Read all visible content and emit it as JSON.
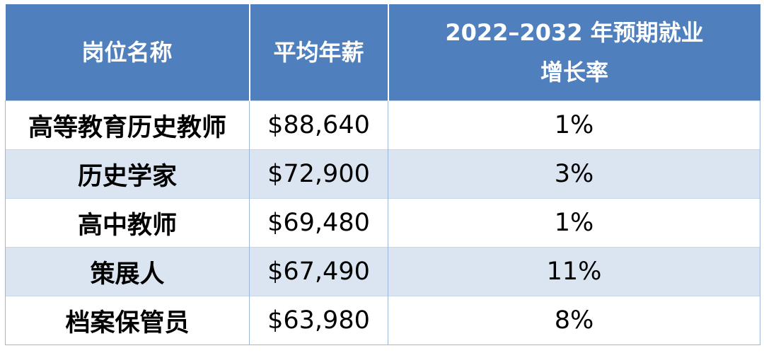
{
  "table": {
    "headers": {
      "role": "岗位名称",
      "salary": "平均年薪",
      "growth_line1": "2022–2032 年预期就业",
      "growth_line2": "增长率"
    },
    "rows": [
      {
        "role": "高等教育历史教师",
        "salary": "$88,640",
        "growth": "1%"
      },
      {
        "role": "历史学家",
        "salary": "$72,900",
        "growth": "3%"
      },
      {
        "role": "高中教师",
        "salary": "$69,480",
        "growth": "1%"
      },
      {
        "role": "策展人",
        "salary": "$67,490",
        "growth": "11%"
      },
      {
        "role": "档案保管员",
        "salary": "$63,980",
        "growth": "8%"
      }
    ]
  },
  "colors": {
    "header_bg": "#4f80bd",
    "header_text": "#ffffff",
    "band_row_bg": "#dbe5f1",
    "plain_row_bg": "#ffffff",
    "grid_line": "#9db7d9"
  }
}
